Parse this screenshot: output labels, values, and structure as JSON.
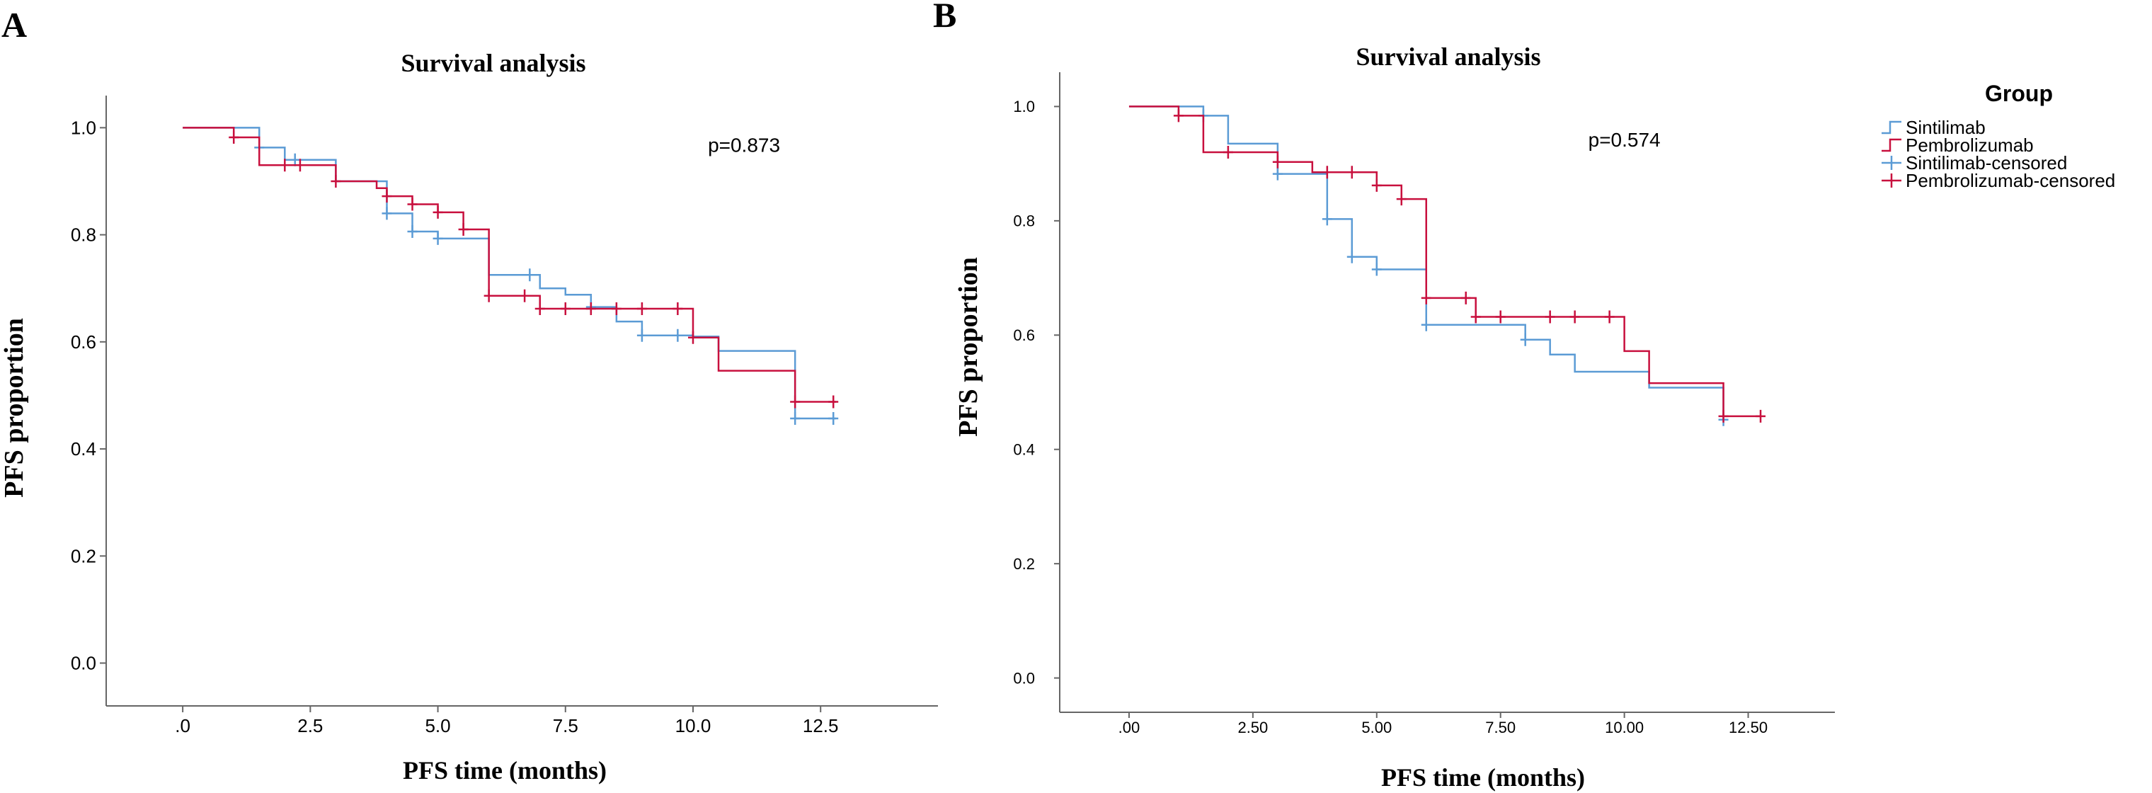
{
  "palette": {
    "sintilimab": "#5b9bd5",
    "pembrolizumab": "#c8103e",
    "axis": "#666666",
    "text": "#000000"
  },
  "legend": {
    "title": "Group",
    "items": [
      {
        "label": "Sintilimab",
        "kind": "step",
        "color": "#5b9bd5"
      },
      {
        "label": "Pembrolizumab",
        "kind": "step",
        "color": "#c8103e"
      },
      {
        "label": "Sintilimab-censored",
        "kind": "censor",
        "color": "#5b9bd5"
      },
      {
        "label": "Pembrolizumab-censored",
        "kind": "censor",
        "color": "#c8103e"
      }
    ]
  },
  "chart_data": [
    {
      "panel_label": "A",
      "type": "line",
      "title": "Survival analysis",
      "xlabel": "PFS time (months)",
      "ylabel": "PFS proportion",
      "xlim": [
        -1.5,
        14.8
      ],
      "ylim": [
        -0.08,
        1.06
      ],
      "xticks": [
        0,
        2.5,
        5,
        7.5,
        10,
        12.5
      ],
      "xtick_labels": [
        ".0",
        "2.5",
        "5.0",
        "7.5",
        "10.0",
        "12.5"
      ],
      "yticks": [
        0,
        0.2,
        0.4,
        0.6,
        0.8,
        1.0
      ],
      "ytick_labels": [
        "0.0",
        "0.2",
        "0.4",
        "0.6",
        "0.8",
        "1.0"
      ],
      "annotation": "p=0.873",
      "annotation_at": [
        11.0,
        0.955
      ],
      "series": [
        {
          "name": "Sintilimab",
          "color": "#5b9bd5",
          "steps": [
            [
              0,
              1.0
            ],
            [
              1.5,
              0.963
            ],
            [
              2.0,
              0.94
            ],
            [
              3.0,
              0.9
            ],
            [
              4.0,
              0.84
            ],
            [
              4.5,
              0.806
            ],
            [
              5.0,
              0.793
            ],
            [
              6.0,
              0.725
            ],
            [
              7.0,
              0.7
            ],
            [
              7.5,
              0.688
            ],
            [
              8.0,
              0.665
            ],
            [
              8.5,
              0.638
            ],
            [
              9.0,
              0.612
            ],
            [
              10.0,
              0.61
            ],
            [
              10.5,
              0.583
            ],
            [
              12.0,
              0.457
            ],
            [
              12.8,
              0.457
            ]
          ],
          "censored": [
            [
              1.5,
              0.963
            ],
            [
              2.2,
              0.94
            ],
            [
              4.0,
              0.84
            ],
            [
              4.5,
              0.806
            ],
            [
              5.0,
              0.793
            ],
            [
              6.8,
              0.725
            ],
            [
              8.0,
              0.665
            ],
            [
              9.0,
              0.612
            ],
            [
              9.7,
              0.612
            ],
            [
              12.0,
              0.457
            ],
            [
              12.75,
              0.457
            ]
          ]
        },
        {
          "name": "Pembrolizumab",
          "color": "#c8103e",
          "steps": [
            [
              0,
              1.0
            ],
            [
              1.0,
              0.982
            ],
            [
              1.5,
              0.93
            ],
            [
              3.0,
              0.9
            ],
            [
              3.8,
              0.887
            ],
            [
              4.0,
              0.872
            ],
            [
              4.5,
              0.857
            ],
            [
              5.0,
              0.842
            ],
            [
              5.5,
              0.81
            ],
            [
              6.0,
              0.686
            ],
            [
              7.0,
              0.662
            ],
            [
              10.0,
              0.608
            ],
            [
              10.5,
              0.546
            ],
            [
              12.0,
              0.488
            ],
            [
              12.8,
              0.488
            ]
          ],
          "censored": [
            [
              1.0,
              0.982
            ],
            [
              2.0,
              0.93
            ],
            [
              2.3,
              0.93
            ],
            [
              3.0,
              0.9
            ],
            [
              4.0,
              0.872
            ],
            [
              4.5,
              0.857
            ],
            [
              5.0,
              0.842
            ],
            [
              5.5,
              0.81
            ],
            [
              6.0,
              0.686
            ],
            [
              6.7,
              0.686
            ],
            [
              7.0,
              0.662
            ],
            [
              7.5,
              0.662
            ],
            [
              8.0,
              0.662
            ],
            [
              8.5,
              0.662
            ],
            [
              9.0,
              0.662
            ],
            [
              9.7,
              0.662
            ],
            [
              10.0,
              0.608
            ],
            [
              12.0,
              0.488
            ],
            [
              12.75,
              0.488
            ]
          ]
        }
      ]
    },
    {
      "panel_label": "B",
      "type": "line",
      "title": "Survival analysis",
      "xlabel": "PFS time (months)",
      "ylabel": "PFS proportion",
      "xlim": [
        -1.4,
        14.25
      ],
      "ylim": [
        -0.06,
        1.06
      ],
      "xticks": [
        0,
        2.5,
        5,
        7.5,
        10,
        12.5
      ],
      "xtick_labels": [
        ".00",
        "2.50",
        "5.00",
        "7.50",
        "10.00",
        "12.50"
      ],
      "yticks": [
        0,
        0.2,
        0.4,
        0.6,
        0.8,
        1.0
      ],
      "ytick_labels": [
        "0.0",
        "0.2",
        "0.4",
        "0.6",
        "0.8",
        "1.0"
      ],
      "annotation": "p=0.574",
      "annotation_at": [
        10.0,
        0.93
      ],
      "series": [
        {
          "name": "Sintilimab",
          "color": "#5b9bd5",
          "steps": [
            [
              0,
              1.0
            ],
            [
              1.5,
              0.984
            ],
            [
              2.0,
              0.935
            ],
            [
              3.0,
              0.882
            ],
            [
              4.0,
              0.803
            ],
            [
              4.5,
              0.737
            ],
            [
              5.0,
              0.715
            ],
            [
              6.0,
              0.618
            ],
            [
              8.0,
              0.592
            ],
            [
              8.5,
              0.566
            ],
            [
              9.0,
              0.536
            ],
            [
              10.5,
              0.508
            ],
            [
              12.0,
              0.452
            ]
          ],
          "censored": [
            [
              1.5,
              0.984
            ],
            [
              3.0,
              0.882
            ],
            [
              4.0,
              0.803
            ],
            [
              4.5,
              0.737
            ],
            [
              5.0,
              0.715
            ],
            [
              6.0,
              0.618
            ],
            [
              8.0,
              0.592
            ],
            [
              12.0,
              0.452
            ]
          ]
        },
        {
          "name": "Pembrolizumab",
          "color": "#c8103e",
          "steps": [
            [
              0,
              1.0
            ],
            [
              1.0,
              0.984
            ],
            [
              1.5,
              0.92
            ],
            [
              3.0,
              0.903
            ],
            [
              3.7,
              0.885
            ],
            [
              5.0,
              0.862
            ],
            [
              5.5,
              0.838
            ],
            [
              6.0,
              0.665
            ],
            [
              7.0,
              0.632
            ],
            [
              10.0,
              0.572
            ],
            [
              10.5,
              0.516
            ],
            [
              12.0,
              0.458
            ],
            [
              12.75,
              0.458
            ]
          ],
          "censored": [
            [
              1.0,
              0.984
            ],
            [
              2.0,
              0.92
            ],
            [
              3.0,
              0.903
            ],
            [
              4.0,
              0.885
            ],
            [
              4.5,
              0.885
            ],
            [
              5.0,
              0.862
            ],
            [
              5.5,
              0.838
            ],
            [
              6.0,
              0.665
            ],
            [
              6.8,
              0.665
            ],
            [
              7.0,
              0.632
            ],
            [
              7.5,
              0.632
            ],
            [
              8.5,
              0.632
            ],
            [
              9.0,
              0.632
            ],
            [
              9.7,
              0.632
            ],
            [
              12.0,
              0.458
            ],
            [
              12.75,
              0.458
            ]
          ]
        }
      ]
    }
  ]
}
